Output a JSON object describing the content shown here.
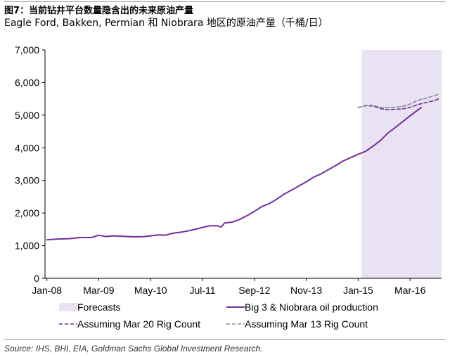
{
  "header": {
    "title": "图7：当前钻井平台数量隐含出的未来原油产量",
    "subtitle": "Eagle Ford, Bakken, Permian   和   Niobrara  地区的原油产量（千桶/日）"
  },
  "footer": {
    "source": "Source: IHS, BHI, EIA, Goldman Sachs Global Investment Research."
  },
  "chart_data": {
    "type": "line",
    "x_ticks": [
      "Jan-08",
      "Mar-09",
      "May-10",
      "Jul-11",
      "Sep-12",
      "Nov-13",
      "Jan-15",
      "Mar-16"
    ],
    "y_ticks": [
      "0",
      "1,000",
      "2,000",
      "3,000",
      "4,000",
      "5,000",
      "6,000",
      "7,000"
    ],
    "ylim": [
      0,
      7000
    ],
    "x_range_months": [
      "2008-01",
      "2016-11"
    ],
    "grid": false,
    "legend_position": "bottom",
    "forecast_region": {
      "start": "2015-02",
      "end": "2016-11",
      "label": "Forecasts",
      "color": "#e8e2f2"
    },
    "series": [
      {
        "name": "Big 3 & Niobrara oil production",
        "style": "solid",
        "color": "#7030a0",
        "points": [
          [
            "2008-01",
            1180
          ],
          [
            "2008-04",
            1205
          ],
          [
            "2008-07",
            1215
          ],
          [
            "2008-10",
            1250
          ],
          [
            "2009-01",
            1250
          ],
          [
            "2009-03",
            1320
          ],
          [
            "2009-05",
            1280
          ],
          [
            "2009-07",
            1300
          ],
          [
            "2009-09",
            1290
          ],
          [
            "2009-11",
            1280
          ],
          [
            "2010-01",
            1270
          ],
          [
            "2010-03",
            1275
          ],
          [
            "2010-05",
            1300
          ],
          [
            "2010-07",
            1330
          ],
          [
            "2010-09",
            1320
          ],
          [
            "2010-11",
            1380
          ],
          [
            "2011-01",
            1410
          ],
          [
            "2011-03",
            1450
          ],
          [
            "2011-05",
            1500
          ],
          [
            "2011-07",
            1560
          ],
          [
            "2011-09",
            1610
          ],
          [
            "2011-11",
            1610
          ],
          [
            "2011-12",
            1570
          ],
          [
            "2012-01",
            1700
          ],
          [
            "2012-03",
            1720
          ],
          [
            "2012-05",
            1800
          ],
          [
            "2012-07",
            1920
          ],
          [
            "2012-09",
            2050
          ],
          [
            "2012-11",
            2200
          ],
          [
            "2013-01",
            2290
          ],
          [
            "2013-03",
            2420
          ],
          [
            "2013-05",
            2580
          ],
          [
            "2013-07",
            2700
          ],
          [
            "2013-09",
            2830
          ],
          [
            "2013-11",
            2960
          ],
          [
            "2014-01",
            3100
          ],
          [
            "2014-03",
            3200
          ],
          [
            "2014-05",
            3330
          ],
          [
            "2014-07",
            3460
          ],
          [
            "2014-09",
            3600
          ],
          [
            "2014-11",
            3700
          ],
          [
            "2015-01",
            3800
          ],
          [
            "2015-03",
            3890
          ],
          [
            "2015-05",
            4050
          ],
          [
            "2015-07",
            4220
          ],
          [
            "2015-09",
            4450
          ],
          [
            "2015-11",
            4620
          ],
          [
            "2016-01",
            4800
          ],
          [
            "2016-03",
            4980
          ],
          [
            "2016-05",
            5150
          ],
          [
            "2016-06",
            5230
          ]
        ]
      },
      {
        "name": "Assuming Mar 20 Rig Count",
        "style": "dashed",
        "color": "#7030a0",
        "points": [
          [
            "2015-01",
            5230
          ],
          [
            "2015-03",
            5290
          ],
          [
            "2015-05",
            5280
          ],
          [
            "2015-07",
            5200
          ],
          [
            "2015-09",
            5170
          ],
          [
            "2015-11",
            5180
          ],
          [
            "2016-01",
            5190
          ],
          [
            "2016-03",
            5240
          ],
          [
            "2016-05",
            5320
          ],
          [
            "2016-07",
            5380
          ],
          [
            "2016-09",
            5430
          ],
          [
            "2016-11",
            5510
          ]
        ]
      },
      {
        "name": "Assuming Mar 13 Rig Count",
        "style": "dashed",
        "color": "#8c8c8c",
        "points": [
          [
            "2015-01",
            5230
          ],
          [
            "2015-03",
            5300
          ],
          [
            "2015-05",
            5300
          ],
          [
            "2015-07",
            5240
          ],
          [
            "2015-09",
            5230
          ],
          [
            "2015-11",
            5240
          ],
          [
            "2016-01",
            5270
          ],
          [
            "2016-03",
            5340
          ],
          [
            "2016-05",
            5450
          ],
          [
            "2016-07",
            5510
          ],
          [
            "2016-09",
            5580
          ],
          [
            "2016-11",
            5650
          ]
        ]
      }
    ]
  }
}
